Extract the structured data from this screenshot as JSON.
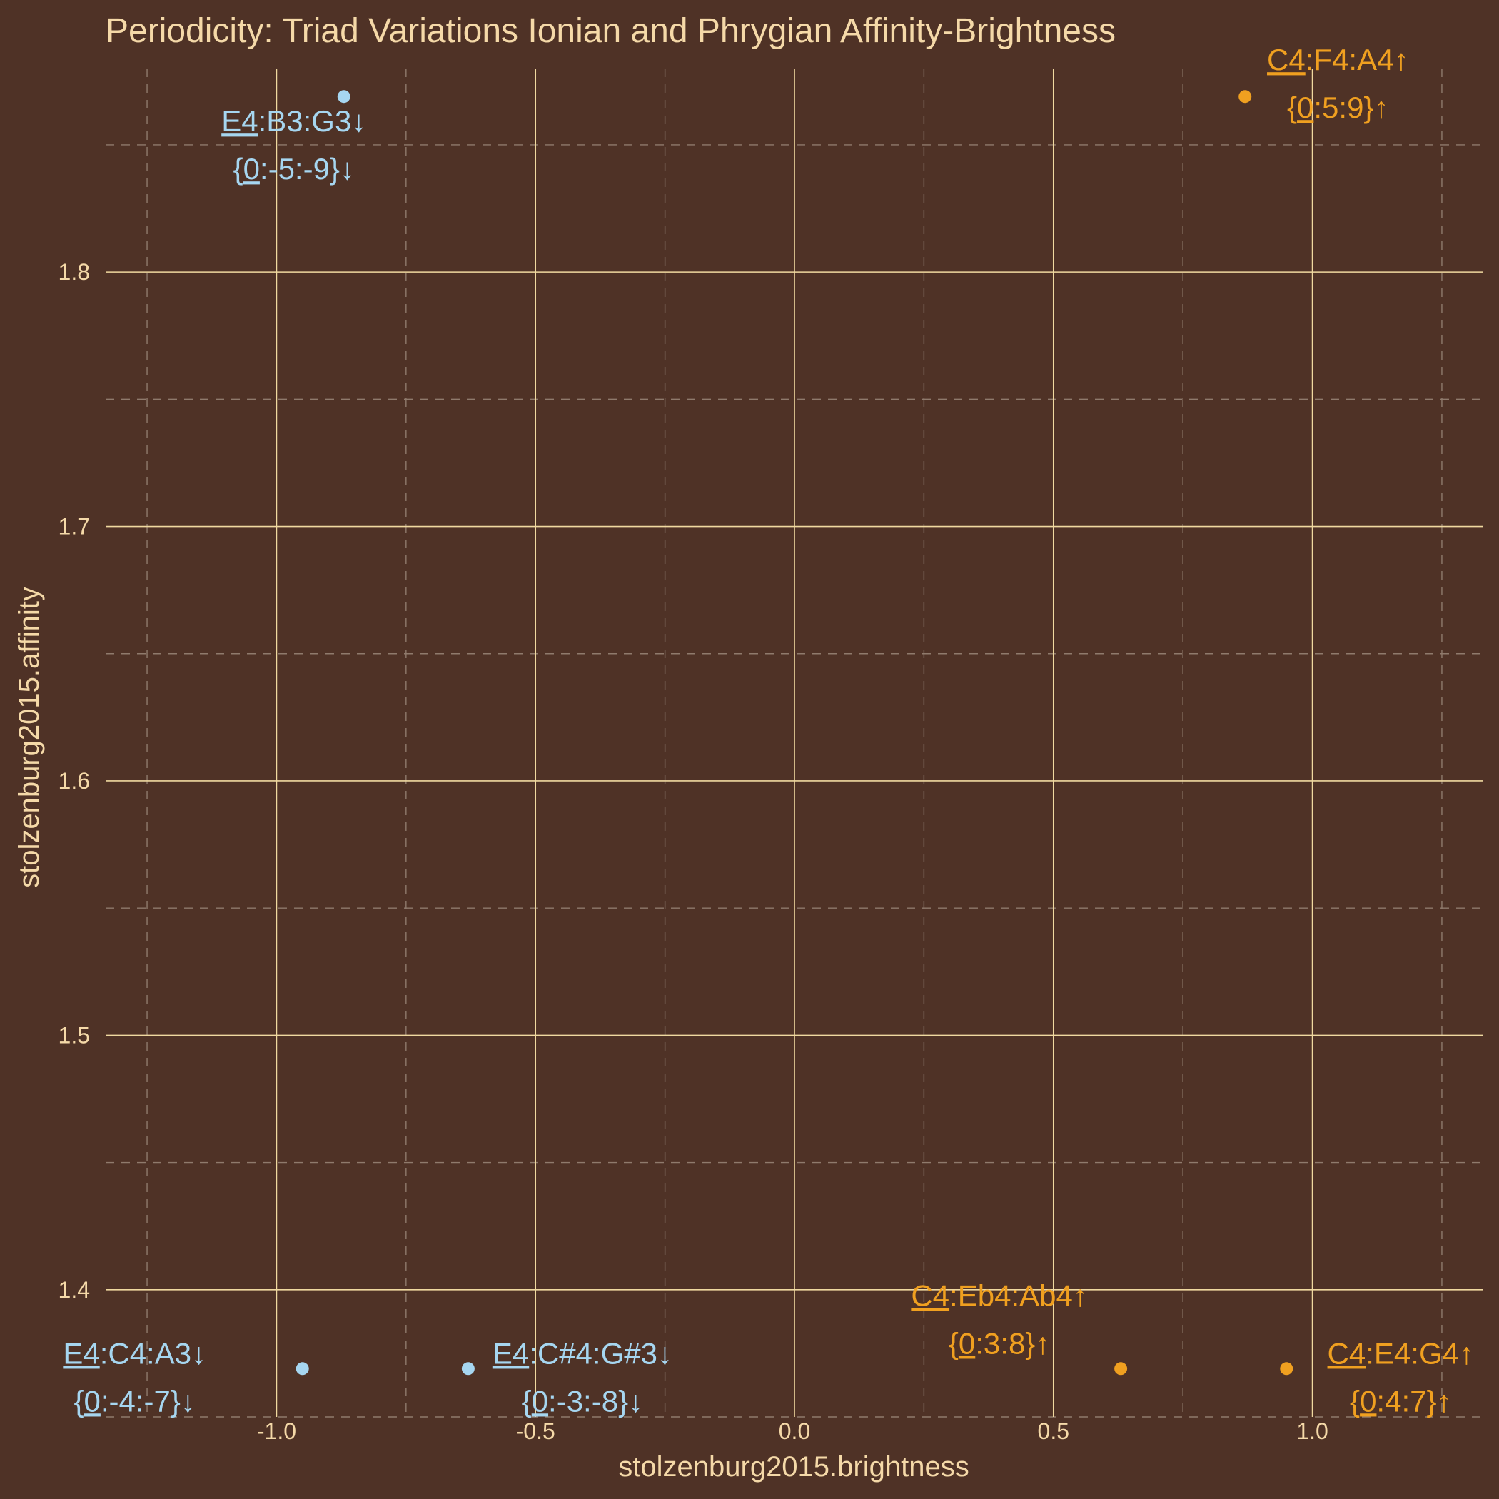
{
  "chart_data": {
    "type": "scatter",
    "title": "Periodicity: Triad Variations Ionian and Phrygian Affinity-Brightness",
    "xlabel": "stolzenburg2015.brightness",
    "ylabel": "stolzenburg2015.affinity",
    "xlim": [
      -1.33,
      1.33
    ],
    "ylim": [
      1.35,
      1.88
    ],
    "x_ticks": [
      {
        "value": -1.0,
        "label": "-1.0"
      },
      {
        "value": -0.5,
        "label": "-0.5"
      },
      {
        "value": 0.0,
        "label": "0.0"
      },
      {
        "value": 0.5,
        "label": "0.5"
      },
      {
        "value": 1.0,
        "label": "1.0"
      }
    ],
    "y_ticks": [
      {
        "value": 1.4,
        "label": "1.4"
      },
      {
        "value": 1.5,
        "label": "1.5"
      },
      {
        "value": 1.6,
        "label": "1.6"
      },
      {
        "value": 1.7,
        "label": "1.7"
      },
      {
        "value": 1.8,
        "label": "1.8"
      }
    ],
    "x_minor": [
      -1.25,
      -0.75,
      -0.25,
      0.25,
      0.75,
      1.25
    ],
    "y_minor": [
      1.35,
      1.45,
      1.55,
      1.65,
      1.75,
      1.85
    ],
    "grid": true,
    "colors": {
      "background": "#4f3226",
      "text": "#f5d9a8",
      "major_grid": "#f0d9a0",
      "minor_grid": "#8f7a6c",
      "down": "#a6d6f0",
      "up": "#f0a020"
    },
    "points": [
      {
        "x": -0.87,
        "y": 1.869,
        "group": "down",
        "label_root": "E4",
        "label_rest": ":B3:G3",
        "label_arrow": "↓",
        "set_root": "0",
        "set_rest": ":-5:-9}",
        "set_arrow": "↓",
        "label_pos": "below"
      },
      {
        "x": -0.95,
        "y": 1.369,
        "group": "down",
        "label_root": "E4",
        "label_rest": ":C4:A3",
        "label_arrow": "↓",
        "set_root": "0",
        "set_rest": ":-4:-7}",
        "set_arrow": "↓",
        "label_pos": "left"
      },
      {
        "x": -0.63,
        "y": 1.369,
        "group": "down",
        "label_root": "E4",
        "label_rest": ":C#4:G#3",
        "label_arrow": "↓",
        "set_root": "0",
        "set_rest": ":-3:-8}",
        "set_arrow": "↓",
        "label_pos": "right"
      },
      {
        "x": 0.63,
        "y": 1.369,
        "group": "up",
        "label_root": "C4",
        "label_rest": ":Eb4:Ab4",
        "label_arrow": "↑",
        "set_root": "0",
        "set_rest": ":3:8}",
        "set_arrow": "↑",
        "label_pos": "upper-left"
      },
      {
        "x": 0.95,
        "y": 1.369,
        "group": "up",
        "label_root": "C4",
        "label_rest": ":E4:G4",
        "label_arrow": "↑",
        "set_root": "0",
        "set_rest": ":4:7}",
        "set_arrow": "↑",
        "label_pos": "right"
      },
      {
        "x": 0.87,
        "y": 1.869,
        "group": "up",
        "label_root": "C4",
        "label_rest": ":F4:A4",
        "label_arrow": "↑",
        "set_root": "0",
        "set_rest": ":5:9}",
        "set_arrow": "↑",
        "label_pos": "above"
      }
    ]
  }
}
